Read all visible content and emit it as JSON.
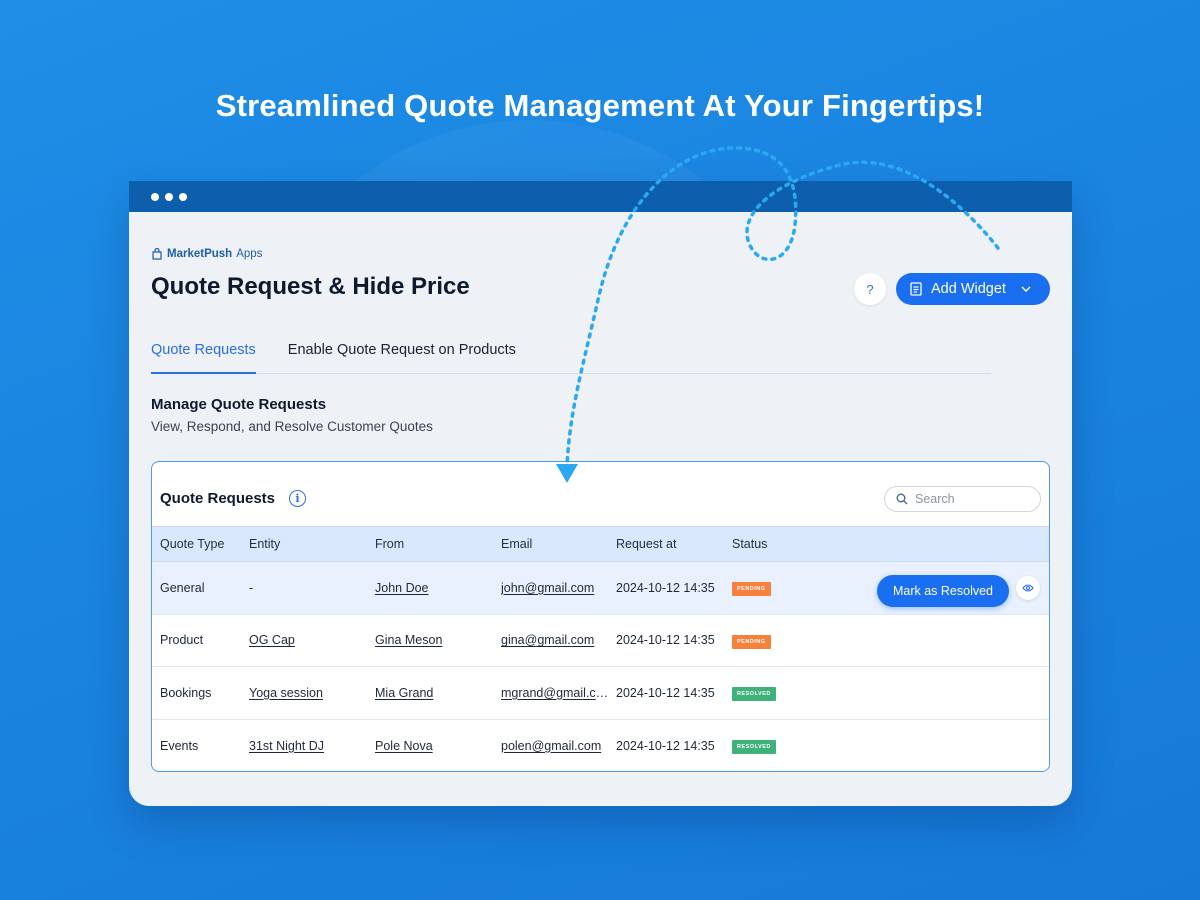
{
  "headline": "Streamlined Quote Management At Your Fingertips!",
  "colors": {
    "accent": "#1a6ef0",
    "titlebar": "#0d5fad",
    "pending": "#f5813a",
    "resolved": "#3fb17a",
    "background": "#1e8ee6"
  },
  "app": {
    "brand": {
      "name_bold": "MarketPush",
      "name_light": "Apps",
      "icon": "shop-bag-icon"
    },
    "title": "Quote Request & Hide Price",
    "help_label": "?",
    "add_widget": {
      "label": "Add Widget",
      "icon": "document-icon",
      "chevron": "chevron-down-icon"
    }
  },
  "tabs": [
    {
      "label": "Quote Requests",
      "active": true
    },
    {
      "label": "Enable Quote Request on Products",
      "active": false
    }
  ],
  "section": {
    "title": "Manage Quote Requests",
    "subtitle": "View, Respond, and Resolve Customer Quotes"
  },
  "table": {
    "title": "Quote Requests",
    "info_icon": "i",
    "search_placeholder": "Search",
    "columns": [
      "Quote Type",
      "Entity",
      "From",
      "Email",
      "Request at",
      "Status"
    ],
    "rows": [
      {
        "type": "General",
        "entity": "-",
        "from": "John Doe",
        "email": "john@gmail.com",
        "requested_at": "2024-10-12 14:35",
        "status": "PENDING"
      },
      {
        "type": "Product",
        "entity": "OG Cap",
        "from": "Gina Meson",
        "email": "gina@gmail.com",
        "requested_at": "2024-10-12 14:35",
        "status": "PENDING"
      },
      {
        "type": "Bookings",
        "entity": "Yoga session",
        "from": "Mia Grand",
        "email": "mgrand@gmail.com",
        "requested_at": "2024-10-12 14:35",
        "status": "RESOLVED"
      },
      {
        "type": "Events",
        "entity": "31st Night DJ",
        "from": "Pole Nova",
        "email": "polen@gmail.com",
        "requested_at": "2024-10-12 14:35",
        "status": "RESOLVED"
      }
    ],
    "row_action": {
      "label": "Mark as Resolved",
      "view_icon": "eye-icon"
    }
  }
}
